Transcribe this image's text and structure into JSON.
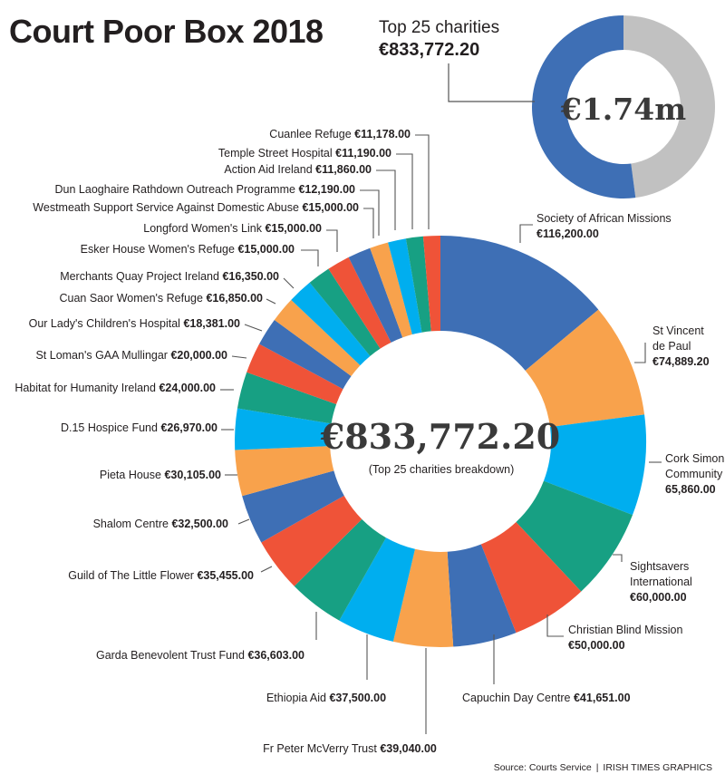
{
  "title": "Court Poor Box 2018",
  "small_donut": {
    "label": "Top 25 charities",
    "amount": "€833,772.20",
    "center_text": "€1.74m",
    "share_top25": 0.479,
    "colors": {
      "top25": "#3e6fb5",
      "rest": "#c1c1c1"
    }
  },
  "big_donut": {
    "center_text": "€833,772.20",
    "sub_text": "(Top 25 charities breakdown)"
  },
  "source": {
    "text": "Source: Courts Service",
    "credit": "IRISH TIMES GRAPHICS"
  },
  "colors": {
    "blue": "#3e6fb5",
    "orange": "#f8a24c",
    "cyan": "#00aeef",
    "teal": "#17a083",
    "red": "#ef5338",
    "grey": "#c1c1c1",
    "leader": "#555555",
    "text": "#231f20"
  },
  "chart_data": {
    "type": "pie",
    "variant": "donut",
    "total": 833772.2,
    "series": [
      {
        "label": "Society of African Missions",
        "value": 116200.0,
        "color": "blue",
        "text": [
          "Society of African Missions",
          "€116,200.00"
        ]
      },
      {
        "label": "St Vincent de Paul",
        "value": 74889.2,
        "color": "orange",
        "text": [
          "St Vincent",
          "de Paul",
          "€74,889.20"
        ]
      },
      {
        "label": "Cork Simon Community",
        "value": 65860.0,
        "color": "cyan",
        "text": [
          "Cork Simon",
          "Community",
          "65,860.00"
        ]
      },
      {
        "label": "Sightsavers International",
        "value": 60000.0,
        "color": "teal",
        "text": [
          "Sightsavers",
          "International",
          "€60,000.00"
        ]
      },
      {
        "label": "Christian Blind Mission",
        "value": 50000.0,
        "color": "red",
        "text": [
          "Christian Blind Mission",
          "€50,000.00"
        ]
      },
      {
        "label": "Capuchin Day Centre",
        "value": 41651.0,
        "color": "blue",
        "text": [
          "Capuchin Day Centre ",
          "€41,651.00"
        ]
      },
      {
        "label": "Fr Peter McVerry Trust",
        "value": 39040.0,
        "color": "orange",
        "text": [
          "Fr Peter McVerry Trust ",
          "€39,040.00"
        ]
      },
      {
        "label": "Ethiopia Aid",
        "value": 37500.0,
        "color": "cyan",
        "text": [
          "Ethiopia Aid ",
          "€37,500.00"
        ]
      },
      {
        "label": "Garda Benevolent Trust Fund",
        "value": 36603.0,
        "color": "teal",
        "text": [
          "Garda Benevolent Trust Fund ",
          "€36,603.00"
        ]
      },
      {
        "label": "Guild of The Little Flower",
        "value": 35455.0,
        "color": "red",
        "text": [
          "Guild of The Little Flower ",
          "€35,455.00"
        ]
      },
      {
        "label": "Shalom Centre",
        "value": 32500.0,
        "color": "blue",
        "text": [
          "Shalom Centre ",
          "€32,500.00"
        ]
      },
      {
        "label": "Pieta House",
        "value": 30105.0,
        "color": "orange",
        "text": [
          "Pieta House  ",
          "€30,105.00"
        ]
      },
      {
        "label": "D.15 Hospice Fund",
        "value": 26970.0,
        "color": "cyan",
        "text": [
          "D.15 Hospice Fund ",
          "€26,970.00"
        ]
      },
      {
        "label": "Habitat for Humanity Ireland",
        "value": 24000.0,
        "color": "teal",
        "text": [
          "Habitat for Humanity Ireland ",
          "€24,000.00"
        ]
      },
      {
        "label": "St Loman's GAA Mullingar",
        "value": 20000.0,
        "color": "red",
        "text": [
          "St Loman's GAA Mullingar ",
          "€20,000.00"
        ]
      },
      {
        "label": "Our Lady's Children's Hospital",
        "value": 18381.0,
        "color": "blue",
        "text": [
          "Our Lady's Children's Hospital ",
          "€18,381.00"
        ]
      },
      {
        "label": "Cuan Saor Women's Refuge",
        "value": 16850.0,
        "color": "orange",
        "text": [
          "Cuan Saor Women's Refuge ",
          "€16,850.00"
        ]
      },
      {
        "label": "Merchants Quay Project Ireland",
        "value": 16350.0,
        "color": "cyan",
        "text": [
          "Merchants Quay Project Ireland ",
          "€16,350.00"
        ]
      },
      {
        "label": "Esker House Women's Refuge",
        "value": 15000.0,
        "color": "teal",
        "text": [
          "Esker House Women's Refuge ",
          "€15,000.00"
        ]
      },
      {
        "label": "Longford Women's Link",
        "value": 15000.0,
        "color": "red",
        "text": [
          "Longford Women's Link ",
          "€15,000.00"
        ]
      },
      {
        "label": "Westmeath Support Service Against Domestic Abuse",
        "value": 15000.0,
        "color": "blue",
        "text": [
          "Westmeath Support Service Against Domestic Abuse ",
          "€15,000.00"
        ]
      },
      {
        "label": "Dun Laoghaire Rathdown Outreach Programme",
        "value": 12190.0,
        "color": "orange",
        "text": [
          "Dun Laoghaire Rathdown Outreach Programme ",
          "€12,190.00"
        ]
      },
      {
        "label": "Action Aid Ireland",
        "value": 11860.0,
        "color": "cyan",
        "text": [
          "Action Aid Ireland ",
          "€11,860.00"
        ]
      },
      {
        "label": "Temple Street Hospital",
        "value": 11190.0,
        "color": "teal",
        "text": [
          "Temple Street Hospital ",
          "€11,190.00"
        ]
      },
      {
        "label": "Cuanlee Refuge",
        "value": 11178.0,
        "color": "red",
        "text": [
          "Cuanlee Refuge ",
          "€11,178.00"
        ]
      }
    ]
  }
}
